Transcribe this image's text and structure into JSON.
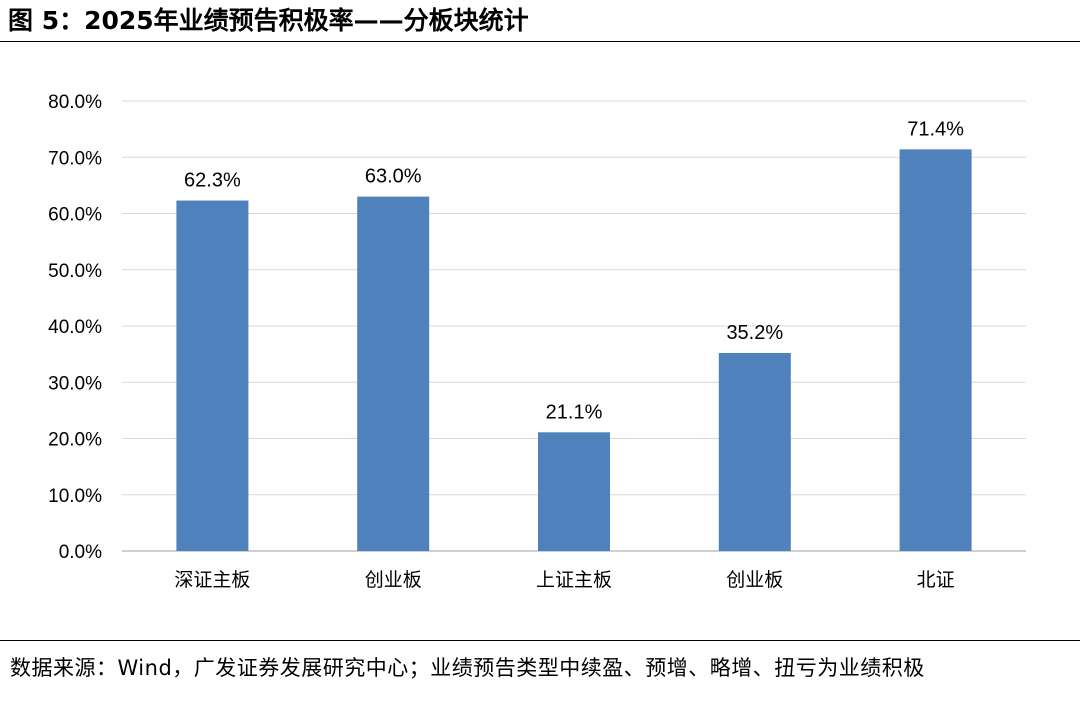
{
  "figure": {
    "title": "图 5：2025年业绩预告积极率——分板块统计",
    "source_note": "数据来源：Wind，广发证券发展研究中心；业绩预告类型中续盈、预增、略增、扭亏为业绩积极"
  },
  "chart_data": {
    "type": "bar",
    "categories": [
      "深证主板",
      "创业板",
      "上证主板",
      "创业板",
      "北证"
    ],
    "values": [
      62.3,
      63.0,
      21.1,
      35.2,
      71.4
    ],
    "value_labels": [
      "62.3%",
      "63.0%",
      "21.1%",
      "35.2%",
      "71.4%"
    ],
    "ylim": [
      0,
      80
    ],
    "yticks": [
      0,
      10,
      20,
      30,
      40,
      50,
      60,
      70,
      80
    ],
    "ytick_labels": [
      "0.0%",
      "10.0%",
      "20.0%",
      "30.0%",
      "40.0%",
      "50.0%",
      "60.0%",
      "70.0%",
      "80.0%"
    ],
    "grid": true,
    "bar_color": "#4F81BD",
    "grid_color": "#D9D9D9",
    "axis_color": "#BFBFBF"
  }
}
